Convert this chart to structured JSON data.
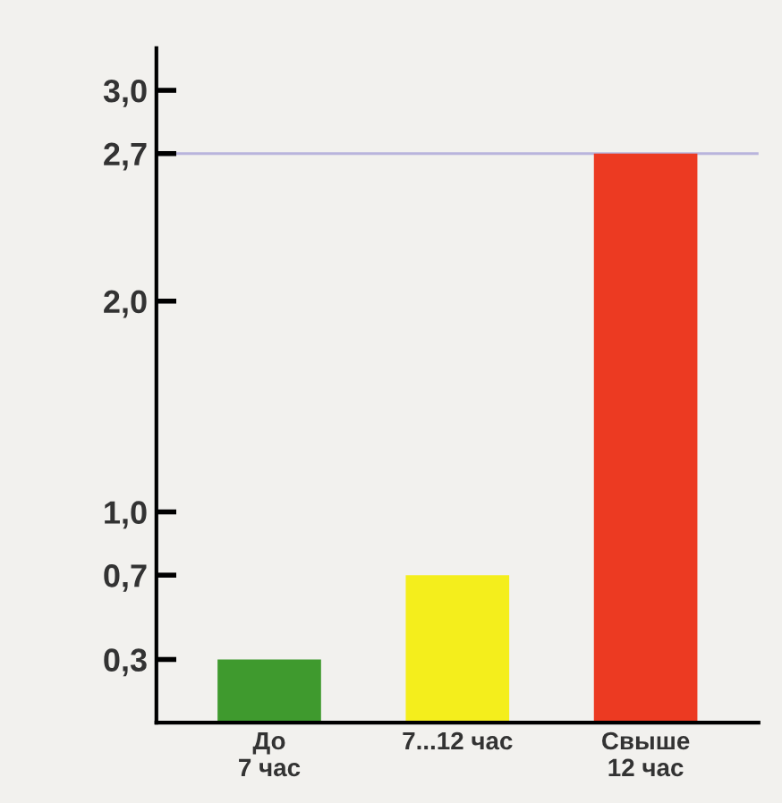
{
  "chart_data": {
    "type": "bar",
    "categories": [
      "До\n7 час",
      "7...12 час",
      "Свыше\n12 час"
    ],
    "values": [
      0.3,
      0.7,
      2.7
    ],
    "colors": [
      "#3f9a2e",
      "#f4ee1c",
      "#ec3a22"
    ],
    "ylim": [
      0,
      3.2
    ],
    "yticks": [
      {
        "value": 0.3,
        "label": "0,3"
      },
      {
        "value": 0.7,
        "label": "0,7"
      },
      {
        "value": 1.0,
        "label": "1,0"
      },
      {
        "value": 2.0,
        "label": "2,0"
      },
      {
        "value": 2.7,
        "label": "2,7"
      },
      {
        "value": 3.0,
        "label": "3,0"
      }
    ],
    "ref_lines": [
      {
        "axis": "y",
        "value": 2.7,
        "label": null,
        "color": "#b9b4dc"
      }
    ],
    "grid": false,
    "legend": false
  }
}
